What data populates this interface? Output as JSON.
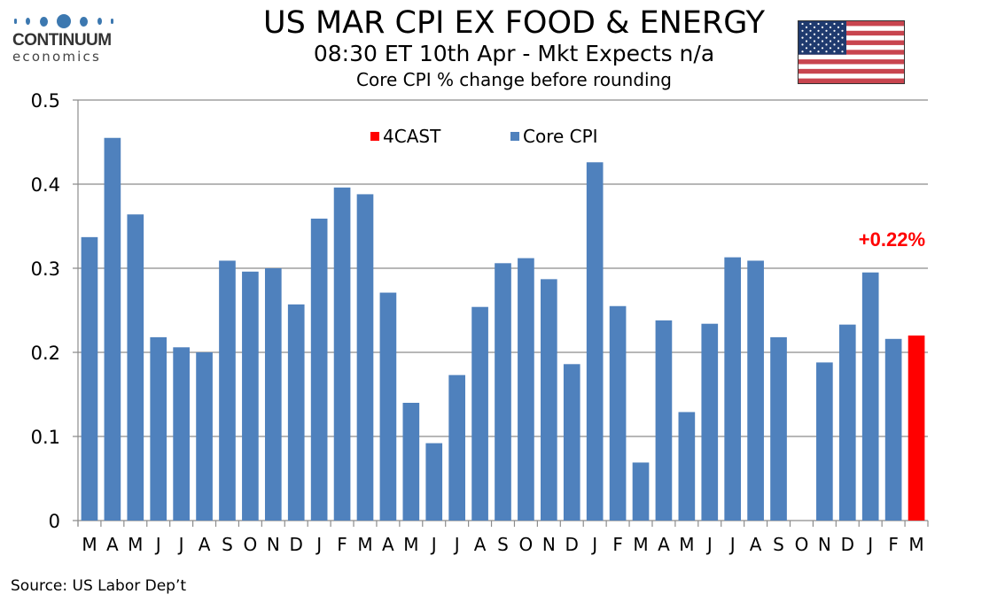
{
  "logo": {
    "name": "CONTINUUM",
    "sub": "economics"
  },
  "header": {
    "title": "US MAR CPI EX FOOD & ENERGY",
    "subtitle": "08:30 ET 10th Apr - Mkt Expects n/a",
    "caption": "Core CPI % change before rounding"
  },
  "flag": {
    "icon": "us-flag-icon",
    "colors": {
      "red": "#c8454f",
      "blue": "#1f3a6e",
      "white": "#ffffff"
    }
  },
  "source": "Source: US Labor Dep’t",
  "chart_data": {
    "type": "bar",
    "title": "Core CPI % change before rounding",
    "xlabel": "",
    "ylabel": "",
    "ylim": [
      0,
      0.5
    ],
    "yticks": [
      "0",
      "0.1",
      "0.2",
      "0.3",
      "0.4",
      "0.5"
    ],
    "ytick_values": [
      0,
      0.1,
      0.2,
      0.3,
      0.4,
      0.5
    ],
    "grid": true,
    "legend_position": "top-center",
    "categories": [
      "M",
      "A",
      "M",
      "J",
      "J",
      "A",
      "S",
      "O",
      "N",
      "D",
      "J",
      "F",
      "M",
      "A",
      "M",
      "J",
      "J",
      "A",
      "S",
      "O",
      "N",
      "D",
      "J",
      "F",
      "M",
      "A",
      "M",
      "J",
      "J",
      "A",
      "S",
      "O",
      "N",
      "D",
      "J",
      "F",
      "M"
    ],
    "series": [
      {
        "name": "Core CPI",
        "color": "#4f81bd",
        "values": [
          0.337,
          0.455,
          0.364,
          0.218,
          0.206,
          0.2,
          0.309,
          0.296,
          0.3,
          0.257,
          0.359,
          0.396,
          0.388,
          0.271,
          0.14,
          0.092,
          0.173,
          0.254,
          0.306,
          0.312,
          0.287,
          0.186,
          0.426,
          0.255,
          0.069,
          0.238,
          0.129,
          0.234,
          0.313,
          0.309,
          0.218,
          null,
          0.188,
          0.233,
          0.295,
          0.216,
          null
        ]
      },
      {
        "name": "4CAST",
        "color": "#ff0000",
        "values": [
          null,
          null,
          null,
          null,
          null,
          null,
          null,
          null,
          null,
          null,
          null,
          null,
          null,
          null,
          null,
          null,
          null,
          null,
          null,
          null,
          null,
          null,
          null,
          null,
          null,
          null,
          null,
          null,
          null,
          null,
          null,
          null,
          null,
          null,
          null,
          null,
          0.22
        ]
      }
    ],
    "legend": [
      "4CAST",
      "Core CPI"
    ],
    "annotations": [
      {
        "text": "+0.22%",
        "color": "#ff0000",
        "target_index": 36
      }
    ]
  }
}
